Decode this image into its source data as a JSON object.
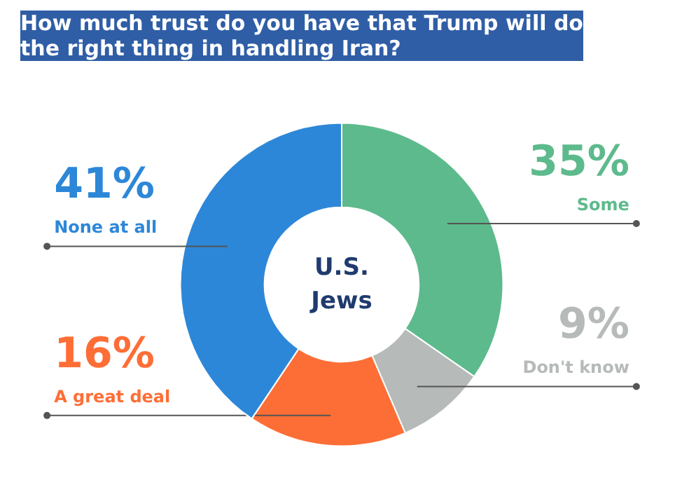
{
  "chart_data": {
    "type": "donut",
    "title": "How much trust do you have that Trump will do the right thing in handling Iran?",
    "categories": [
      "Some",
      "Don't know",
      "A great deal",
      "None at all"
    ],
    "values": [
      35,
      9,
      16,
      41
    ],
    "value_labels": [
      "35%",
      "9%",
      "16%",
      "41%"
    ],
    "colors": [
      "#5dba8c",
      "#b6bab9",
      "#fd6e36",
      "#2d87d8"
    ],
    "annotations": [
      "U.S. Jews"
    ]
  }
}
